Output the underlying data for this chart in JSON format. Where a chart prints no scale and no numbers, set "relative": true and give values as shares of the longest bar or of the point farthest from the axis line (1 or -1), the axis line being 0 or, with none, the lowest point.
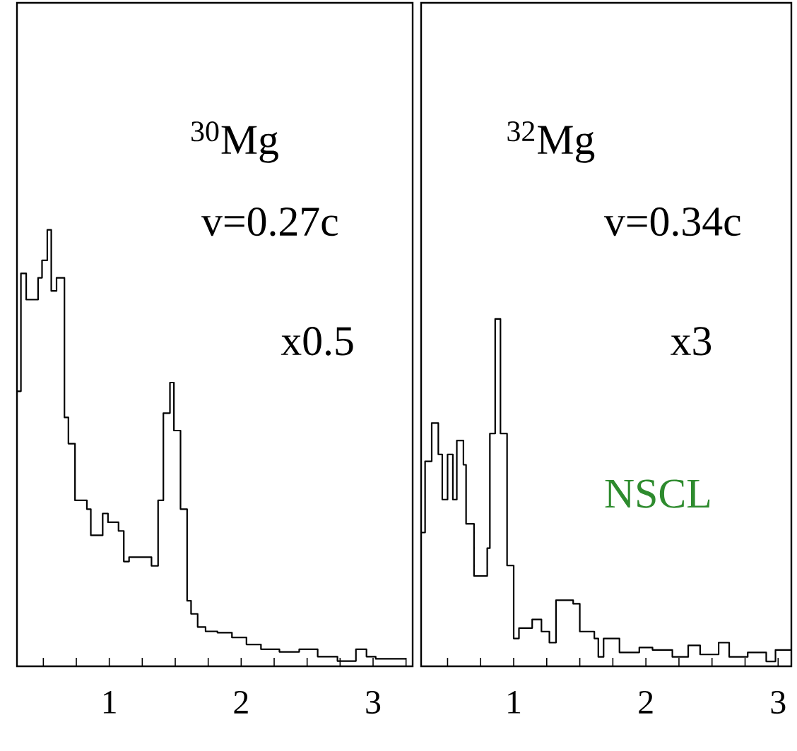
{
  "chart_data": [
    {
      "type": "step",
      "title": "$^{30}$Mg",
      "annotations": [
        "v=0.27c",
        "x0.5"
      ],
      "relative": true,
      "tick_labels": "x",
      "color": "#000000",
      "xlim": [
        0.3,
        3.3
      ],
      "xticks": [
        {
          "value": 0.5,
          "label": null
        },
        {
          "value": 0.75,
          "label": null
        },
        1,
        {
          "value": 1.25,
          "label": null
        },
        {
          "value": 1.5,
          "label": null
        },
        {
          "value": 1.75,
          "label": null
        },
        2,
        {
          "value": 2.25,
          "label": null
        },
        {
          "value": 2.5,
          "label": null
        },
        {
          "value": 2.75,
          "label": null
        },
        3,
        {
          "value": 3.25,
          "label": null
        }
      ],
      "x": [
        0.3,
        0.33,
        0.37,
        0.46,
        0.49,
        0.53,
        0.56,
        0.6,
        0.66,
        0.69,
        0.74,
        0.83,
        0.86,
        0.95,
        0.99,
        1.07,
        1.11,
        1.15,
        1.32,
        1.37,
        1.41,
        1.46,
        1.49,
        1.54,
        1.59,
        1.62,
        1.67,
        1.73,
        1.82,
        1.93,
        2.04,
        2.15,
        2.29,
        2.44,
        2.58,
        2.73,
        2.87,
        2.95,
        3.02,
        3.25
      ],
      "values": [
        0.63,
        0.9,
        0.84,
        0.89,
        0.93,
        1.0,
        0.86,
        0.89,
        0.57,
        0.51,
        0.38,
        0.36,
        0.3,
        0.35,
        0.33,
        0.31,
        0.24,
        0.25,
        0.23,
        0.38,
        0.58,
        0.65,
        0.54,
        0.36,
        0.15,
        0.12,
        0.09,
        0.08,
        0.077,
        0.066,
        0.05,
        0.039,
        0.033,
        0.039,
        0.022,
        0.012,
        0.039,
        0.022,
        0.017,
        0.017
      ]
    },
    {
      "type": "step",
      "title": "$^{32}$Mg",
      "annotations": [
        "v=0.34c",
        "x3",
        "NSCL"
      ],
      "relative": true,
      "tick_labels": "x",
      "color": "#000000",
      "xlim": [
        0.3,
        3.1
      ],
      "xticks": [
        {
          "value": 0.5,
          "label": null
        },
        {
          "value": 0.75,
          "label": null
        },
        1,
        {
          "value": 1.25,
          "label": null
        },
        {
          "value": 1.5,
          "label": null
        },
        {
          "value": 1.75,
          "label": null
        },
        2,
        {
          "value": 2.25,
          "label": null
        },
        {
          "value": 2.5,
          "label": null
        },
        {
          "value": 2.75,
          "label": null
        },
        3
      ],
      "x": [
        0.3,
        0.33,
        0.38,
        0.43,
        0.46,
        0.5,
        0.54,
        0.57,
        0.62,
        0.64,
        0.7,
        0.8,
        0.82,
        0.86,
        0.9,
        0.95,
        1.0,
        1.04,
        1.14,
        1.21,
        1.27,
        1.32,
        1.45,
        1.5,
        1.61,
        1.64,
        1.68,
        1.8,
        1.95,
        2.05,
        2.2,
        2.32,
        2.41,
        2.55,
        2.63,
        2.77,
        2.91,
        2.98,
        3.1
      ],
      "values": [
        0.385,
        0.59,
        0.7,
        0.61,
        0.48,
        0.61,
        0.48,
        0.65,
        0.58,
        0.41,
        0.26,
        0.34,
        0.67,
        1.0,
        0.67,
        0.29,
        0.08,
        0.11,
        0.135,
        0.1,
        0.068,
        0.19,
        0.18,
        0.1,
        0.08,
        0.027,
        0.08,
        0.04,
        0.054,
        0.047,
        0.027,
        0.06,
        0.034,
        0.068,
        0.027,
        0.04,
        0.014,
        0.047,
        0.047
      ]
    }
  ]
}
